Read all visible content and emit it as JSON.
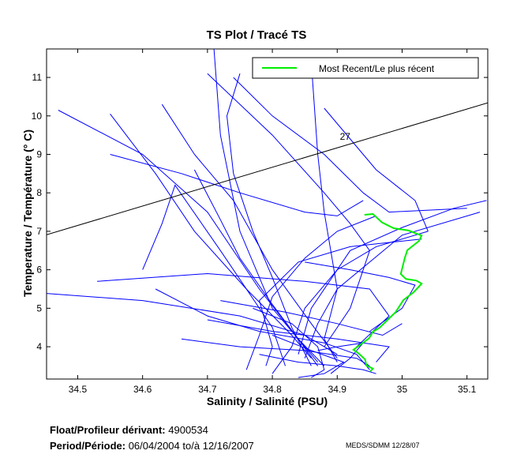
{
  "chart_data": {
    "type": "line",
    "title": "TS Plot / Tracé TS",
    "xlabel": "Salinity / Salinité (PSU)",
    "ylabel": "Temperature / Température (° C)",
    "xlim": [
      34.452,
      35.132
    ],
    "ylim": [
      3.16,
      11.74
    ],
    "xticks": [
      "34.5",
      "34.6",
      "34.7",
      "34.8",
      "34.9",
      "35",
      "35.1"
    ],
    "yticks": [
      "4",
      "5",
      "6",
      "7",
      "8",
      "9",
      "10",
      "11"
    ],
    "grid": false,
    "legend": {
      "placement": "top-right",
      "entries": [
        "Most Recent/Le plus récent"
      ]
    },
    "colors": {
      "profiles": "#0000ff",
      "recent": "#00ee00",
      "density": "#000000"
    },
    "density_contour": {
      "label": "27",
      "points": [
        [
          34.452,
          6.91
        ],
        [
          35.132,
          10.34
        ]
      ],
      "label_at": [
        34.904,
        9.38
      ]
    },
    "most_recent": [
      [
        34.942,
        7.43
      ],
      [
        34.955,
        7.45
      ],
      [
        34.969,
        7.23
      ],
      [
        34.987,
        7.08
      ],
      [
        35.01,
        7.02
      ],
      [
        35.03,
        6.89
      ],
      [
        35.026,
        6.75
      ],
      [
        35.008,
        6.51
      ],
      [
        35.004,
        6.3
      ],
      [
        34.998,
        5.89
      ],
      [
        35.006,
        5.76
      ],
      [
        35.022,
        5.72
      ],
      [
        35.03,
        5.64
      ],
      [
        35.018,
        5.42
      ],
      [
        35.002,
        5.21
      ],
      [
        34.99,
        4.9
      ],
      [
        34.965,
        4.49
      ],
      [
        34.955,
        4.39
      ],
      [
        34.949,
        4.22
      ],
      [
        34.925,
        3.92
      ],
      [
        34.932,
        3.84
      ],
      [
        34.943,
        3.67
      ],
      [
        34.945,
        3.51
      ],
      [
        34.955,
        3.43
      ],
      [
        34.951,
        3.36
      ]
    ],
    "profiles": [
      [
        [
          34.71,
          11.74
        ],
        [
          34.72,
          9.5
        ],
        [
          34.75,
          7
        ],
        [
          34.8,
          5
        ],
        [
          34.85,
          4
        ],
        [
          34.87,
          3.6
        ]
      ],
      [
        [
          34.47,
          10.15
        ],
        [
          34.6,
          9
        ],
        [
          34.7,
          7.5
        ],
        [
          34.78,
          5.5
        ],
        [
          34.84,
          4.2
        ],
        [
          34.88,
          3.5
        ]
      ],
      [
        [
          34.55,
          10.05
        ],
        [
          34.62,
          8.5
        ],
        [
          34.68,
          7
        ],
        [
          34.76,
          5.5
        ],
        [
          34.83,
          4.3
        ],
        [
          34.86,
          3.7
        ]
      ],
      [
        [
          34.63,
          10.3
        ],
        [
          34.68,
          9
        ],
        [
          34.74,
          7.8
        ],
        [
          34.8,
          6
        ],
        [
          34.86,
          4.6
        ],
        [
          34.9,
          3.7
        ]
      ],
      [
        [
          34.7,
          11.1
        ],
        [
          34.8,
          9.5
        ],
        [
          34.88,
          8.0
        ],
        [
          34.92,
          7.2
        ],
        [
          34.95,
          6.5
        ],
        [
          34.92,
          5
        ],
        [
          34.88,
          4
        ]
      ],
      [
        [
          34.86,
          11.4
        ],
        [
          34.87,
          9
        ],
        [
          34.88,
          7.5
        ],
        [
          34.9,
          5.5
        ],
        [
          34.88,
          4.2
        ],
        [
          34.9,
          3.6
        ]
      ],
      [
        [
          34.74,
          11.0
        ],
        [
          34.8,
          10
        ],
        [
          34.88,
          9
        ],
        [
          34.94,
          8
        ],
        [
          34.98,
          7.5
        ],
        [
          35.1,
          7.6
        ]
      ],
      [
        [
          34.44,
          5.4
        ],
        [
          34.6,
          5.2
        ],
        [
          34.75,
          4.8
        ],
        [
          34.85,
          4.3
        ],
        [
          34.9,
          3.8
        ]
      ],
      [
        [
          34.53,
          5.7
        ],
        [
          34.7,
          5.9
        ],
        [
          34.85,
          5.7
        ],
        [
          34.95,
          5.5
        ],
        [
          34.98,
          4.8
        ],
        [
          34.93,
          4.0
        ]
      ],
      [
        [
          34.6,
          6.0
        ],
        [
          34.63,
          7.2
        ],
        [
          34.65,
          8.2
        ],
        [
          34.72,
          6.5
        ],
        [
          34.8,
          4.5
        ],
        [
          34.82,
          3.5
        ]
      ],
      [
        [
          35.13,
          7.8
        ],
        [
          35.08,
          7.6
        ],
        [
          35.0,
          7.1
        ],
        [
          34.92,
          6.5
        ],
        [
          34.86,
          5.0
        ],
        [
          34.84,
          3.8
        ]
      ],
      [
        [
          35.12,
          7.5
        ],
        [
          35.0,
          6.9
        ],
        [
          34.95,
          6.2
        ],
        [
          34.9,
          5.5
        ],
        [
          34.87,
          4.6
        ],
        [
          34.85,
          3.7
        ]
      ],
      [
        [
          35.04,
          7.0
        ],
        [
          34.96,
          6.6
        ],
        [
          34.9,
          6.0
        ],
        [
          34.85,
          5.0
        ],
        [
          34.83,
          4.0
        ],
        [
          34.8,
          3.3
        ]
      ],
      [
        [
          35.03,
          6.8
        ],
        [
          34.92,
          6.6
        ],
        [
          34.84,
          6.2
        ],
        [
          34.78,
          5.2
        ],
        [
          34.8,
          4.0
        ],
        [
          34.79,
          3.5
        ]
      ],
      [
        [
          34.96,
          7.4
        ],
        [
          34.9,
          7.0
        ],
        [
          34.85,
          6.3
        ],
        [
          34.8,
          5.3
        ],
        [
          34.78,
          4.3
        ],
        [
          34.76,
          3.4
        ]
      ],
      [
        [
          34.55,
          9.0
        ],
        [
          34.66,
          8.5
        ],
        [
          34.75,
          8.0
        ],
        [
          34.85,
          7.5
        ],
        [
          34.9,
          7.4
        ],
        [
          34.94,
          7.8
        ]
      ],
      [
        [
          34.88,
          10.2
        ],
        [
          34.92,
          9.4
        ],
        [
          34.96,
          8.6
        ],
        [
          35.02,
          7.8
        ],
        [
          35.04,
          7.0
        ]
      ],
      [
        [
          34.62,
          5.5
        ],
        [
          34.7,
          4.8
        ],
        [
          34.78,
          4.4
        ],
        [
          34.88,
          4.1
        ],
        [
          34.93,
          3.8
        ],
        [
          34.95,
          3.4
        ]
      ],
      [
        [
          34.66,
          4.2
        ],
        [
          34.75,
          4.0
        ],
        [
          34.85,
          3.9
        ],
        [
          34.93,
          3.7
        ],
        [
          34.95,
          3.5
        ]
      ],
      [
        [
          34.7,
          4.7
        ],
        [
          34.8,
          4.4
        ],
        [
          34.9,
          4.2
        ],
        [
          34.98,
          4.0
        ],
        [
          34.96,
          3.6
        ]
      ],
      [
        [
          34.72,
          5.2
        ],
        [
          34.82,
          4.9
        ],
        [
          34.9,
          4.6
        ],
        [
          34.97,
          4.3
        ],
        [
          35.0,
          4.6
        ]
      ],
      [
        [
          34.77,
          5.0
        ],
        [
          34.83,
          4.6
        ],
        [
          34.87,
          4.0
        ],
        [
          34.88,
          3.4
        ],
        [
          34.86,
          3.2
        ]
      ],
      [
        [
          34.8,
          4.3
        ],
        [
          34.86,
          3.9
        ],
        [
          34.91,
          3.6
        ],
        [
          34.88,
          3.3
        ],
        [
          34.84,
          3.2
        ]
      ],
      [
        [
          34.68,
          8.6
        ],
        [
          34.72,
          7.3
        ],
        [
          34.75,
          6.3
        ],
        [
          34.8,
          5.1
        ],
        [
          34.84,
          4.2
        ],
        [
          34.87,
          3.5
        ]
      ],
      [
        [
          34.75,
          11.1
        ],
        [
          34.73,
          10
        ],
        [
          34.74,
          8.5
        ],
        [
          34.77,
          7
        ],
        [
          34.8,
          5.8
        ],
        [
          34.83,
          4.5
        ],
        [
          34.86,
          3.5
        ]
      ],
      [
        [
          34.85,
          6.2
        ],
        [
          34.92,
          6.0
        ],
        [
          34.98,
          5.8
        ],
        [
          35.02,
          5.6
        ],
        [
          35.0,
          5.0
        ],
        [
          34.95,
          4.4
        ]
      ],
      [
        [
          34.78,
          3.8
        ],
        [
          34.84,
          3.6
        ],
        [
          34.9,
          3.5
        ],
        [
          34.94,
          3.4
        ],
        [
          34.96,
          3.3
        ]
      ],
      [
        [
          34.87,
          3.9
        ],
        [
          34.9,
          4.0
        ],
        [
          34.94,
          4.1
        ],
        [
          34.92,
          3.7
        ],
        [
          34.89,
          3.3
        ]
      ]
    ]
  },
  "footer": {
    "float_label": "Float/Profileur dérivant:",
    "float_id": "4900534",
    "period_label": "Period/Période:",
    "period_start": "06/04/2004",
    "period_sep": "to/à",
    "period_end": "12/16/2007",
    "credit": "MEDS/SDMM  12/28/07"
  }
}
